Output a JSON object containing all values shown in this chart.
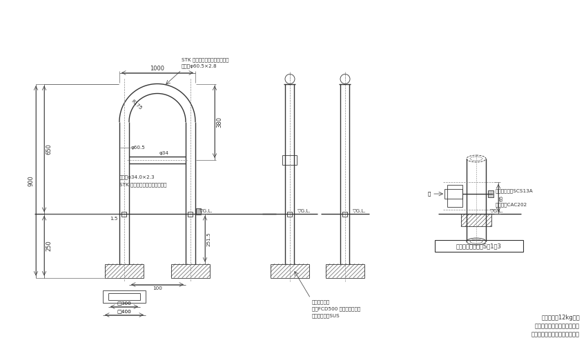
{
  "bg_color": "#ffffff",
  "line_color": "#333333",
  "annotations": {
    "main_material": "本体：φ60.5×2.8",
    "main_material2": "STK 溶融亜邉めっき＋烁付塩装",
    "width_label": "1000",
    "height_900": "900",
    "height_650": "650",
    "height_380": "380",
    "height_250": "250",
    "dim_15": "1.5",
    "dim_100": "100",
    "dim_2515": "251.5",
    "dim_300": "□300",
    "dim_400": "□400",
    "phi605": "φ60.5",
    "phi34": "φ34",
    "r175": "R175",
    "yokobar": "横棘：φ34.0×2.3",
    "yokobar2": "STK 溶融亜邉めっき＋烁付塨装",
    "gl_label": "▽G.L.",
    "lock_label": "南京鍛部詳細図　S＝1：3",
    "lock_pin": "ロックピン：SCS13A",
    "lock_body": "南京鍛：CAC202",
    "futa": "蓋",
    "pipe_label": "脱着用埋設管",
    "pipe_mat1": "蓋：FCD500 溶融亜邉めっき",
    "pipe_mat2": "埋設管本体：SUS",
    "footer1": "支柱質量：12kg／本",
    "footer2": "本体色は、黄または白です。",
    "footer3": "ご注文の際にご指示ください。",
    "dim_65": "65"
  }
}
